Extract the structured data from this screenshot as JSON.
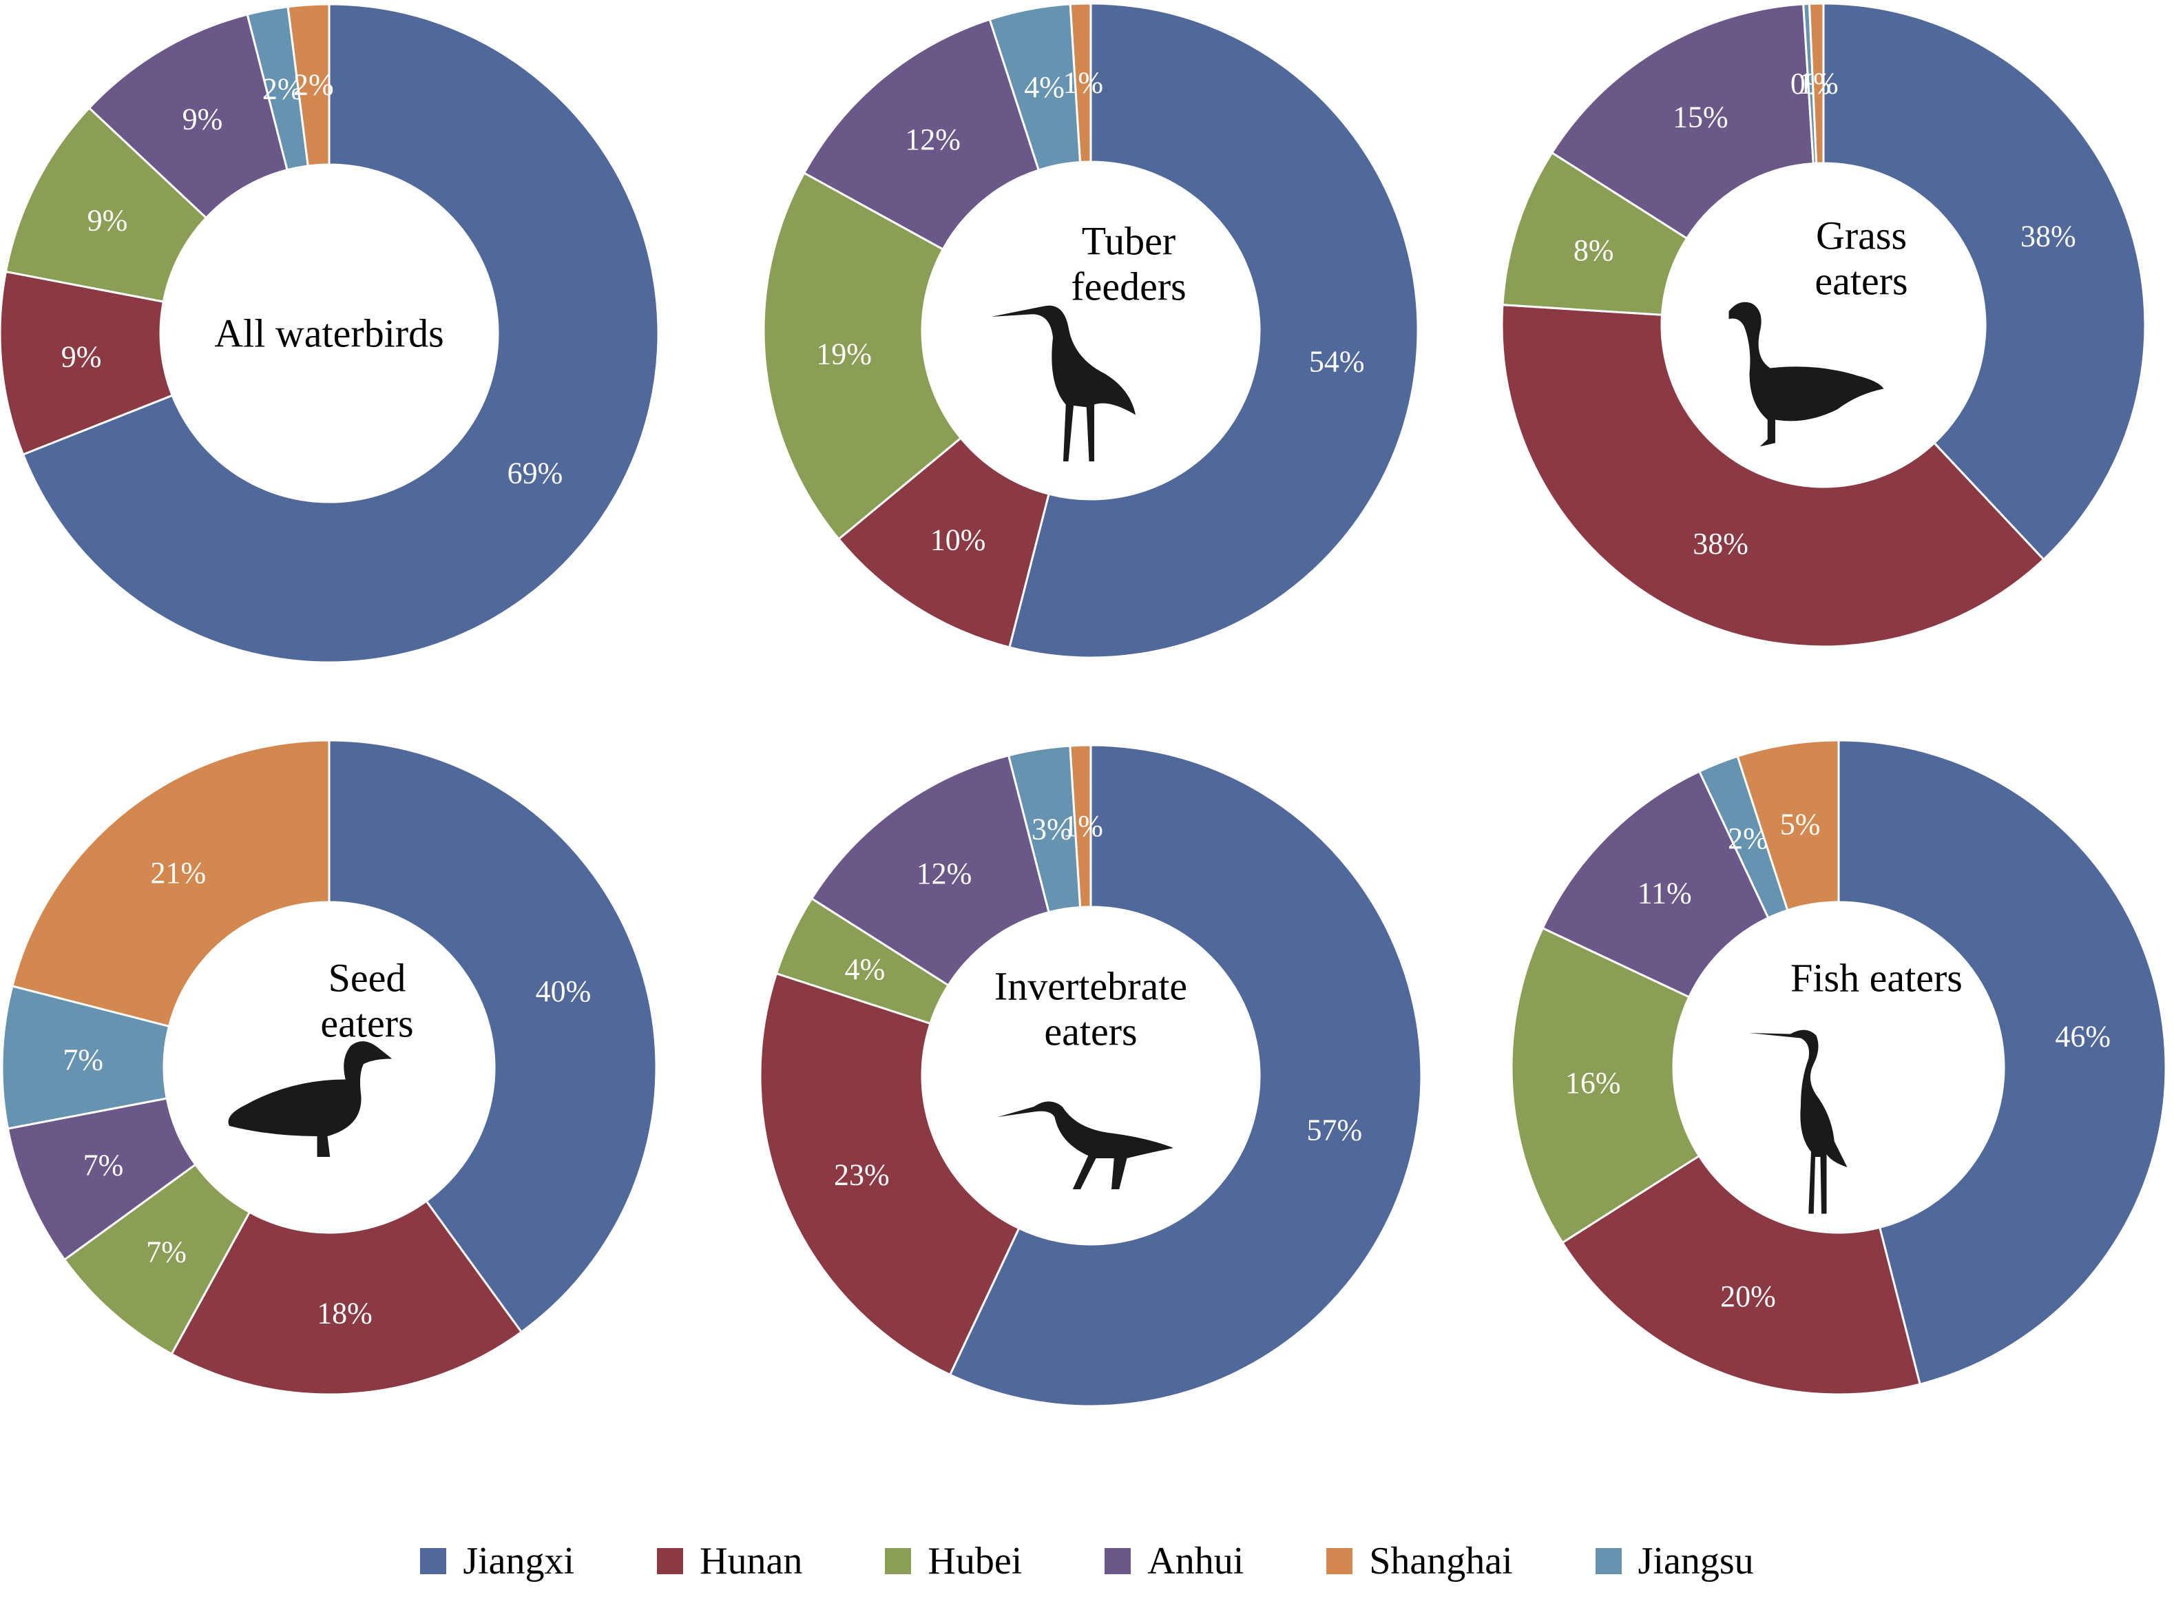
{
  "colors": {
    "Jiangxi": "#50689A",
    "Hunan": "#8B3A44",
    "Hubei": "#8A9E55",
    "Anhui": "#6A5888",
    "Shanghai": "#D3884F",
    "Jiangsu": "#6694B0"
  },
  "chart_data": [
    {
      "type": "pie",
      "title": "All waterbirds",
      "title_lines": [
        "All waterbirds"
      ],
      "bird_icon": "none",
      "slices": [
        {
          "name": "Jiangxi",
          "value": 69,
          "label": "69%"
        },
        {
          "name": "Hunan",
          "value": 9,
          "label": "9%"
        },
        {
          "name": "Hubei",
          "value": 9,
          "label": "9%"
        },
        {
          "name": "Anhui",
          "value": 9,
          "label": "9%"
        },
        {
          "name": "Jiangsu",
          "value": 2,
          "label": "2%"
        },
        {
          "name": "Shanghai",
          "value": 2,
          "label": "2%"
        }
      ]
    },
    {
      "type": "pie",
      "title": "Tuber feeders",
      "title_lines": [
        "Tuber",
        "feeders"
      ],
      "bird_icon": "crane-icon",
      "slices": [
        {
          "name": "Jiangxi",
          "value": 54,
          "label": "54%"
        },
        {
          "name": "Hunan",
          "value": 10,
          "label": "10%"
        },
        {
          "name": "Hubei",
          "value": 19,
          "label": "19%"
        },
        {
          "name": "Anhui",
          "value": 12,
          "label": "12%"
        },
        {
          "name": "Jiangsu",
          "value": 4,
          "label": "4%"
        },
        {
          "name": "Shanghai",
          "value": 1,
          "label": "1%"
        }
      ]
    },
    {
      "type": "pie",
      "title": "Grass eaters",
      "title_lines": [
        "Grass",
        "eaters"
      ],
      "bird_icon": "goose-icon",
      "slices": [
        {
          "name": "Jiangxi",
          "value": 38,
          "label": "38%"
        },
        {
          "name": "Hunan",
          "value": 38,
          "label": "38%"
        },
        {
          "name": "Hubei",
          "value": 8,
          "label": "8%"
        },
        {
          "name": "Anhui",
          "value": 15,
          "label": "15%"
        },
        {
          "name": "Jiangsu",
          "value": 0.3,
          "label": "0%"
        },
        {
          "name": "Shanghai",
          "value": 0.7,
          "label": "1%"
        }
      ]
    },
    {
      "type": "pie",
      "title": "Seed eaters",
      "title_lines": [
        "Seed",
        "eaters"
      ],
      "bird_icon": "duck-icon",
      "slices": [
        {
          "name": "Jiangxi",
          "value": 40,
          "label": "40%"
        },
        {
          "name": "Hunan",
          "value": 18,
          "label": "18%"
        },
        {
          "name": "Hubei",
          "value": 7,
          "label": "7%"
        },
        {
          "name": "Anhui",
          "value": 7,
          "label": "7%"
        },
        {
          "name": "Jiangsu",
          "value": 7,
          "label": "7%"
        },
        {
          "name": "Shanghai",
          "value": 21,
          "label": "21%"
        }
      ]
    },
    {
      "type": "pie",
      "title": "Invertebrate eaters",
      "title_lines": [
        "Invertebrate",
        "eaters"
      ],
      "bird_icon": "wader-icon",
      "slices": [
        {
          "name": "Jiangxi",
          "value": 57,
          "label": "57%"
        },
        {
          "name": "Hunan",
          "value": 23,
          "label": "23%"
        },
        {
          "name": "Hubei",
          "value": 4,
          "label": "4%"
        },
        {
          "name": "Anhui",
          "value": 12,
          "label": "12%"
        },
        {
          "name": "Jiangsu",
          "value": 3,
          "label": "3%"
        },
        {
          "name": "Shanghai",
          "value": 1,
          "label": "1%"
        }
      ]
    },
    {
      "type": "pie",
      "title": "Fish eaters",
      "title_lines": [
        "Fish eaters"
      ],
      "bird_icon": "heron-icon",
      "slices": [
        {
          "name": "Jiangxi",
          "value": 46,
          "label": "46%"
        },
        {
          "name": "Hunan",
          "value": 20,
          "label": "20%"
        },
        {
          "name": "Hubei",
          "value": 16,
          "label": "16%"
        },
        {
          "name": "Anhui",
          "value": 11,
          "label": "11%"
        },
        {
          "name": "Jiangsu",
          "value": 2,
          "label": "2%"
        },
        {
          "name": "Shanghai",
          "value": 5,
          "label": "5%"
        }
      ]
    }
  ],
  "legend": {
    "placement": "bottom",
    "items": [
      {
        "label": "Jiangxi",
        "key": "Jiangxi"
      },
      {
        "label": "Hunan",
        "key": "Hunan"
      },
      {
        "label": "Hubei",
        "key": "Hubei"
      },
      {
        "label": "Anhui",
        "key": "Anhui"
      },
      {
        "label": "Shanghai",
        "key": "Shanghai"
      },
      {
        "label": "Jiangsu",
        "key": "Jiangsu"
      }
    ]
  }
}
